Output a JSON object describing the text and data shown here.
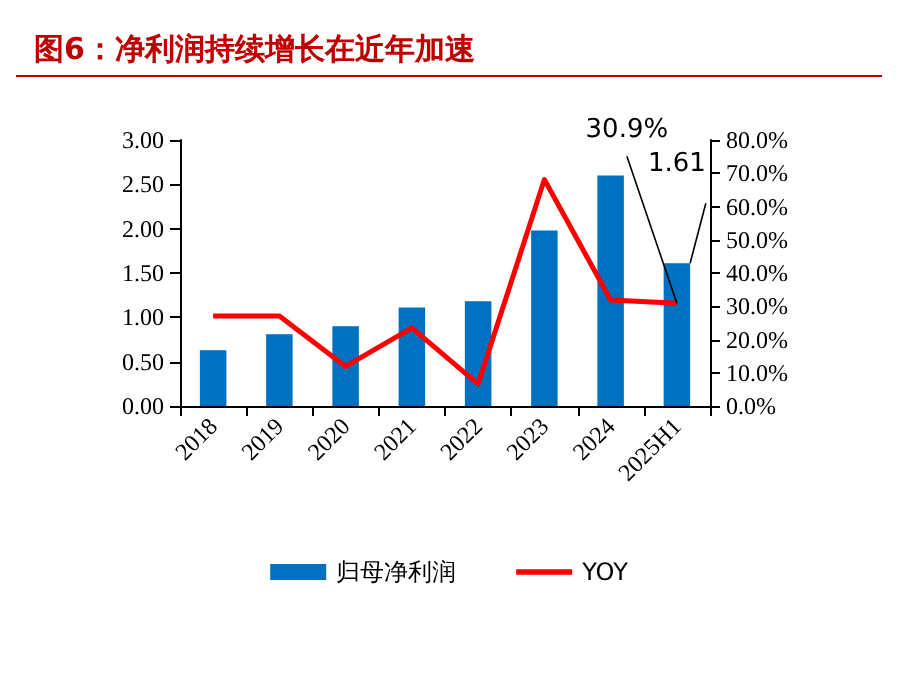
{
  "chart_data": {
    "type": "bar",
    "title": "图6：净利润持续增长在近年加速",
    "categories": [
      "2018",
      "2019",
      "2020",
      "2021",
      "2022",
      "2023",
      "2024",
      "2025H1"
    ],
    "series": [
      {
        "name": "归母净利润",
        "color": "#0070c0",
        "values": [
          0.63,
          0.81,
          0.9,
          1.11,
          1.18,
          1.98,
          2.6,
          1.61
        ],
        "value_labels": [
          null,
          null,
          null,
          null,
          null,
          null,
          null,
          "1.61"
        ]
      },
      {
        "name": "YOY",
        "type": "line",
        "axis": "y2",
        "color": "#ff0000",
        "values": [
          27.1,
          27.1,
          11.9,
          23.5,
          6.6,
          68.1,
          31.9,
          30.9
        ],
        "value_labels": [
          null,
          null,
          null,
          null,
          null,
          null,
          null,
          "30.9%"
        ]
      }
    ],
    "ylim": [
      0,
      3
    ],
    "yticks": [
      {
        "value": 0,
        "label": "0.00"
      },
      {
        "value": 0.5,
        "label": "0.50"
      },
      {
        "value": 1,
        "label": "1.00"
      },
      {
        "value": 1.5,
        "label": "1.50"
      },
      {
        "value": 2,
        "label": "2.00"
      },
      {
        "value": 2.5,
        "label": "2.50"
      },
      {
        "value": 3,
        "label": "3.00"
      }
    ],
    "y2lim": [
      0,
      80
    ],
    "y2ticks": [
      {
        "value": 0,
        "label": "0.0%"
      },
      {
        "value": 10,
        "label": "10.0%"
      },
      {
        "value": 20,
        "label": "20.0%"
      },
      {
        "value": 30,
        "label": "30.0%"
      },
      {
        "value": 40,
        "label": "40.0%"
      },
      {
        "value": 50,
        "label": "50.0%"
      },
      {
        "value": 60,
        "label": "60.0%"
      },
      {
        "value": 70,
        "label": "70.0%"
      },
      {
        "value": 80,
        "label": "80.0%"
      }
    ],
    "grid": false,
    "legend": "bottom",
    "marker": "none",
    "line_style": "solid"
  }
}
